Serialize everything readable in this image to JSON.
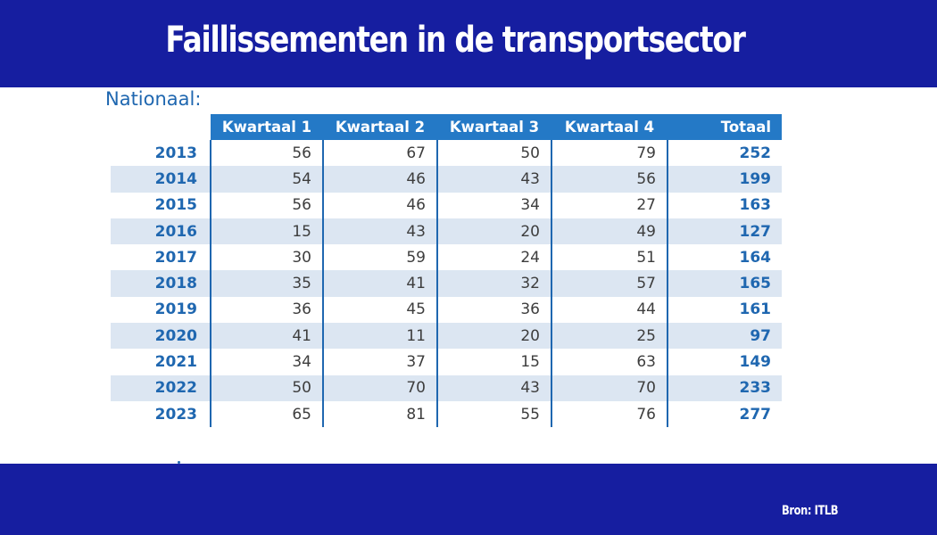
{
  "header": {
    "title": "Faillissementen in de transportsector"
  },
  "section": {
    "label": "Nationaal:"
  },
  "table": {
    "columns": [
      "Kwartaal 1",
      "Kwartaal 2",
      "Kwartaal 3",
      "Kwartaal 4",
      "Totaal"
    ],
    "rows": [
      {
        "year": "2013",
        "q1": "56",
        "q2": "67",
        "q3": "50",
        "q4": "79",
        "total": "252"
      },
      {
        "year": "2014",
        "q1": "54",
        "q2": "46",
        "q3": "43",
        "q4": "56",
        "total": "199"
      },
      {
        "year": "2015",
        "q1": "56",
        "q2": "46",
        "q3": "34",
        "q4": "27",
        "total": "163"
      },
      {
        "year": "2016",
        "q1": "15",
        "q2": "43",
        "q3": "20",
        "q4": "49",
        "total": "127"
      },
      {
        "year": "2017",
        "q1": "30",
        "q2": "59",
        "q3": "24",
        "q4": "51",
        "total": "164"
      },
      {
        "year": "2018",
        "q1": "35",
        "q2": "41",
        "q3": "32",
        "q4": "57",
        "total": "165"
      },
      {
        "year": "2019",
        "q1": "36",
        "q2": "45",
        "q3": "36",
        "q4": "44",
        "total": "161"
      },
      {
        "year": "2020",
        "q1": "41",
        "q2": "11",
        "q3": "20",
        "q4": "25",
        "total": "97"
      },
      {
        "year": "2021",
        "q1": "34",
        "q2": "37",
        "q3": "15",
        "q4": "63",
        "total": "149"
      },
      {
        "year": "2022",
        "q1": "50",
        "q2": "70",
        "q3": "43",
        "q4": "70",
        "total": "233"
      },
      {
        "year": "2023",
        "q1": "65",
        "q2": "81",
        "q3": "55",
        "q4": "76",
        "total": "277"
      }
    ]
  },
  "footer": {
    "source": "Bron: ITLB"
  },
  "colors": {
    "banner": "#161ea0",
    "table_header": "#2479c6",
    "accent_text": "#1f67b0",
    "row_shade": "#dce6f2"
  }
}
